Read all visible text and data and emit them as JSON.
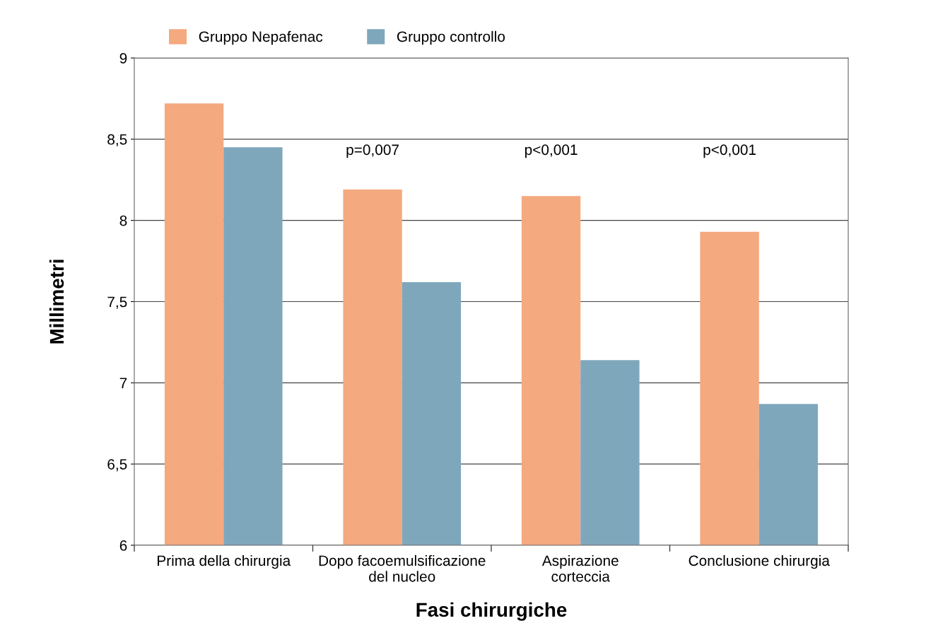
{
  "chart_data": {
    "type": "bar",
    "xlabel": "Fasi chirurgiche",
    "ylabel": "Millimetri",
    "categories": [
      "Prima della chirurgia",
      "Dopo facoemulsificazione\ndel nucleo",
      "Aspirazione\ncorteccia",
      "Conclusione chirurgia"
    ],
    "series": [
      {
        "name": "Gruppo Nepafenac",
        "color": "#f5a97f",
        "values": [
          8.72,
          8.19,
          8.15,
          7.93
        ]
      },
      {
        "name": "Gruppo controllo",
        "color": "#7fa7bc",
        "values": [
          8.45,
          7.62,
          7.14,
          6.87
        ]
      }
    ],
    "ylim": [
      6,
      9
    ],
    "yticks": [
      6,
      {
        "value": 6.5,
        "label": "6,5"
      },
      7,
      {
        "value": 7.5,
        "label": "7,5"
      },
      8,
      {
        "value": 8.5,
        "label": "8,5"
      },
      9
    ],
    "grid": "y",
    "legend": "top left",
    "annotations": [
      "p=0,007",
      "p<0,001",
      "p<0,001"
    ]
  }
}
